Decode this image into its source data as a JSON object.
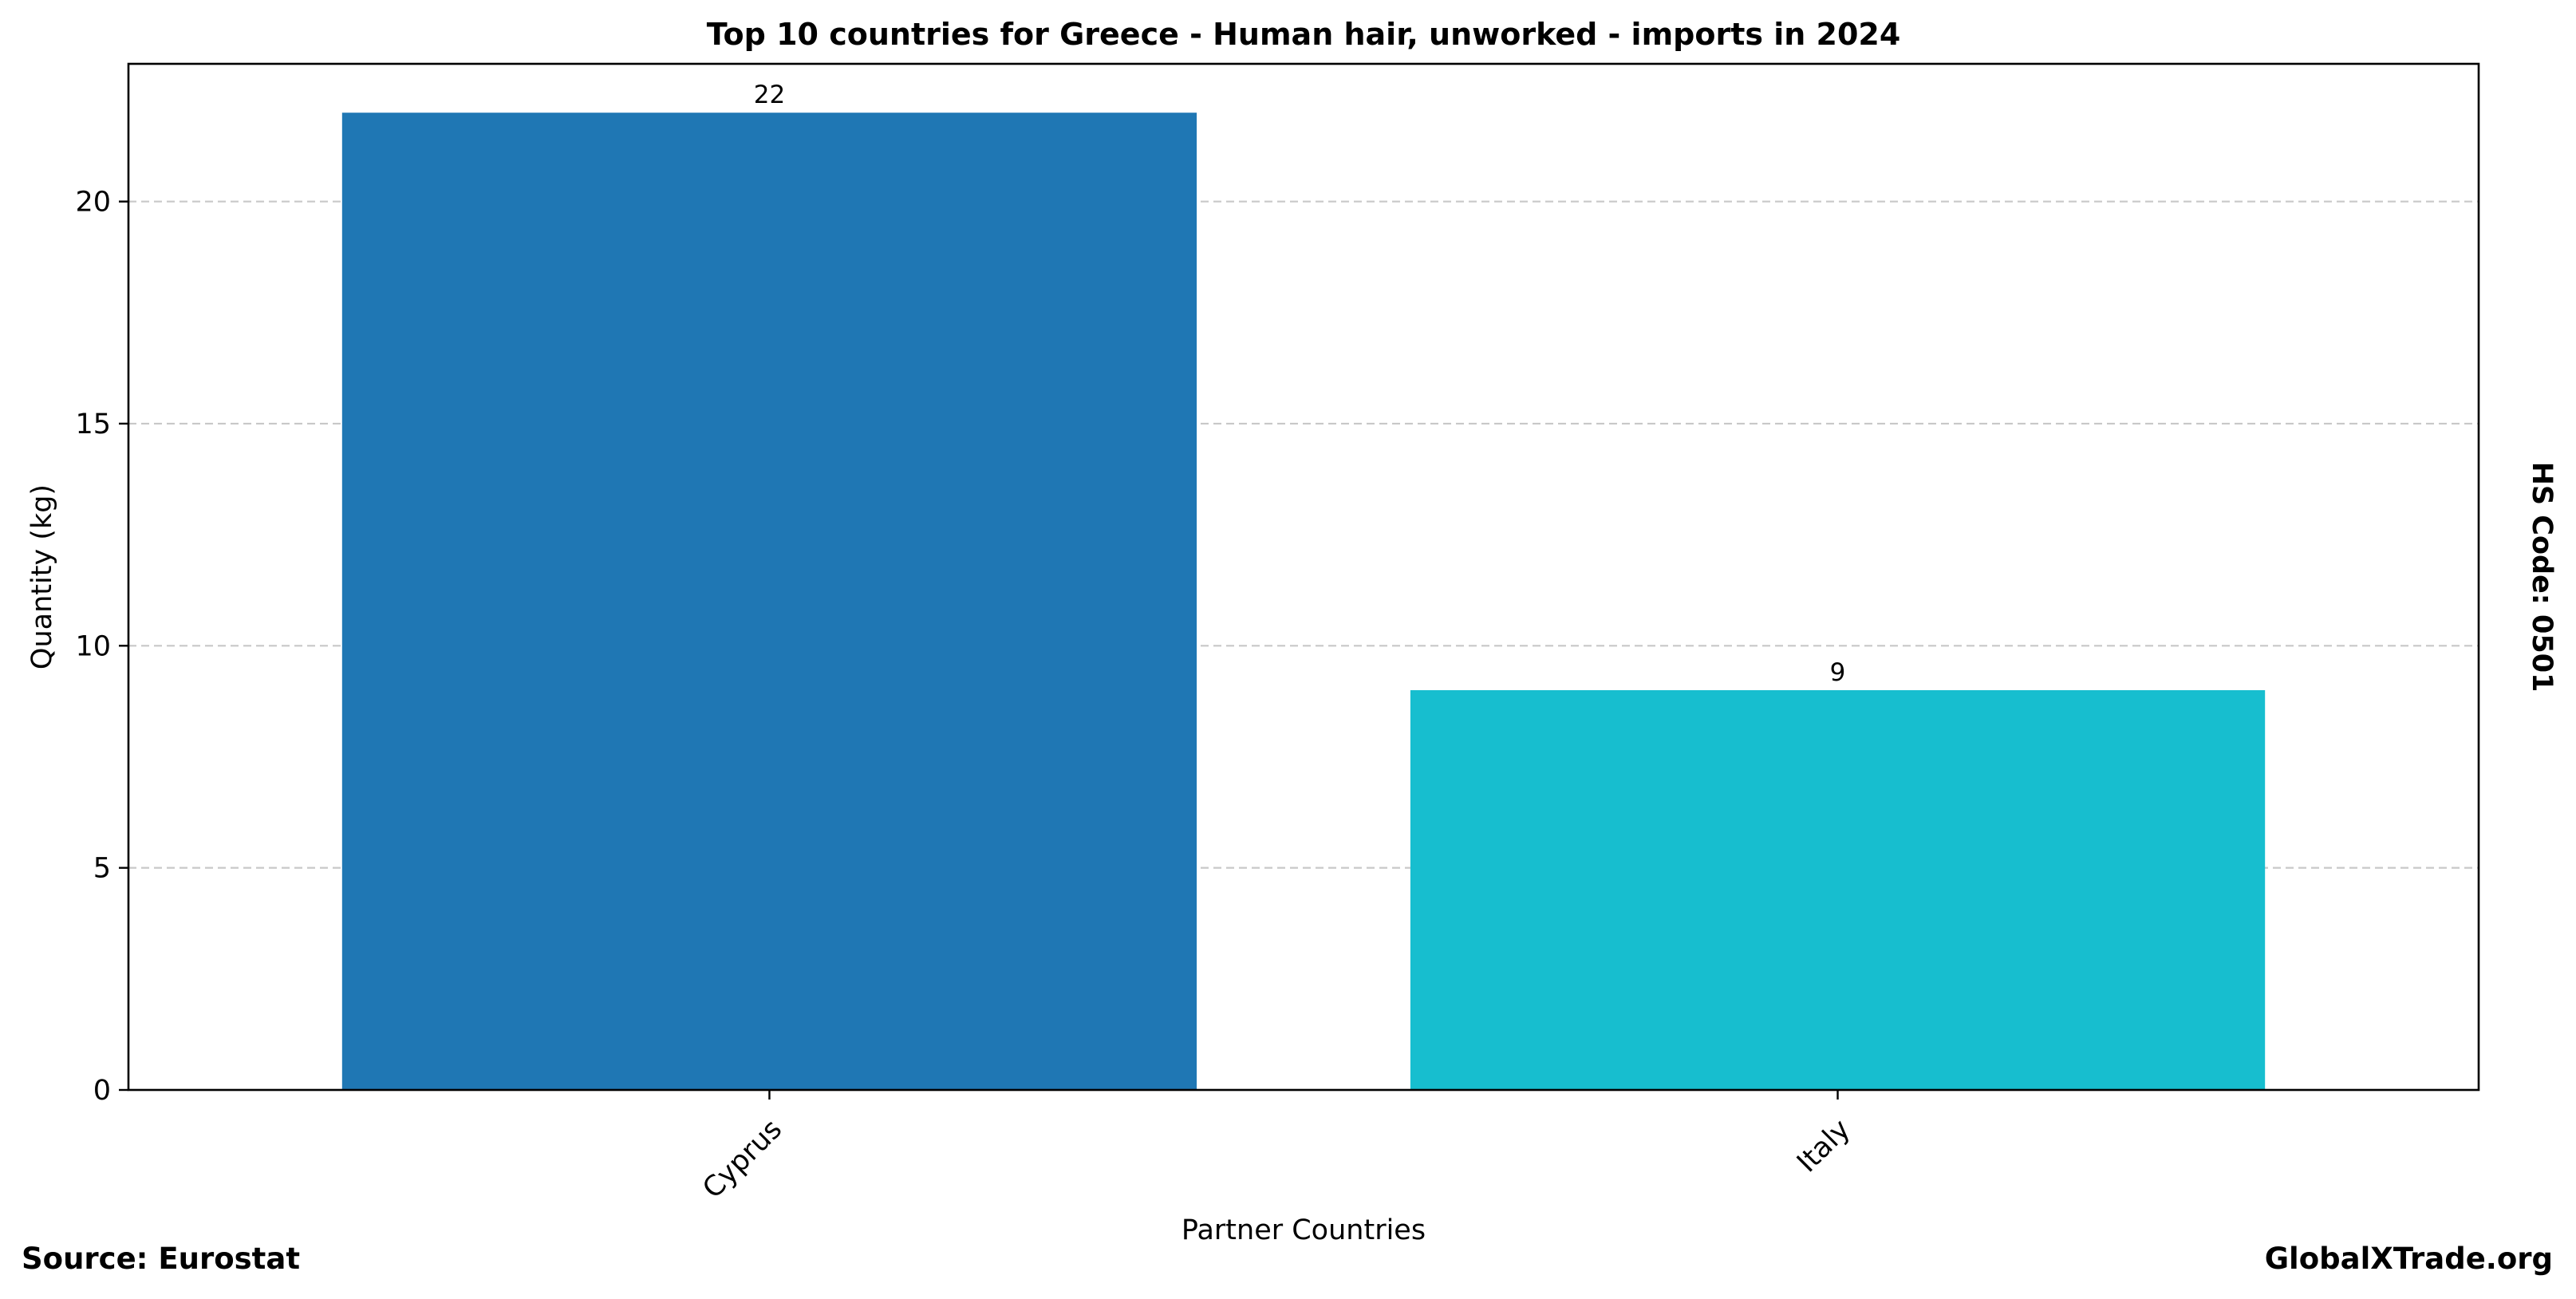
{
  "chart_data": {
    "type": "bar",
    "title": "Top 10 countries for Greece - Human hair, unworked - imports in 2024",
    "xlabel": "Partner Countries",
    "ylabel": "Quantity (kg)",
    "categories": [
      "Cyprus",
      "Italy"
    ],
    "values": [
      22,
      9
    ],
    "data_labels": [
      "22",
      "9"
    ],
    "colors": [
      "#1f77b4",
      "#17becf"
    ],
    "ylim": [
      0,
      23.1
    ],
    "yticks": [
      0,
      5,
      10,
      15,
      20
    ],
    "grid": true,
    "legend": "none"
  },
  "annotations": {
    "hs_code": "HS Code: 0501",
    "source": "Source: Eurostat",
    "watermark": "GlobalXTrade.org"
  }
}
